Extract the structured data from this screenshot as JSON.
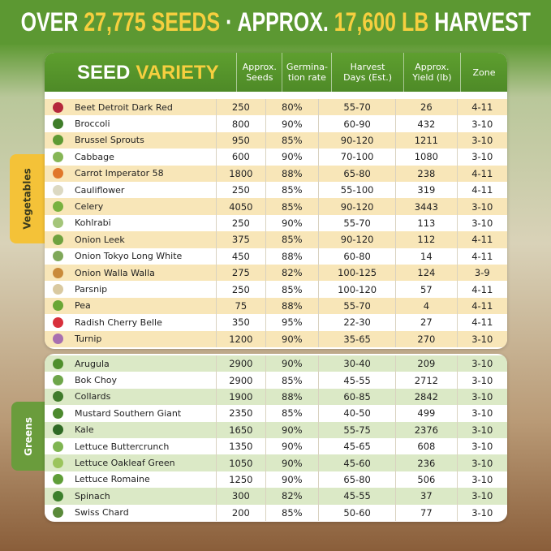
{
  "header": {
    "pre": "OVER",
    "seeds": "27,775 SEEDS",
    "mid": "· APPROX.",
    "harvest": "17,600 LB",
    "post": "HARVEST"
  },
  "table": {
    "columns": {
      "variety_a": "SEED",
      "variety_b": "VARIETY",
      "seeds": "Approx.\nSeeds",
      "germination": "Germina-\ntion rate",
      "days": "Harvest\nDays (Est.)",
      "yield": "Approx.\nYield (lb)",
      "zone": "Zone"
    },
    "groups": [
      {
        "label": "Vegetables",
        "rows": [
          [
            "Beet Detroit Dark Red",
            "250",
            "80%",
            "55-70",
            "26",
            "4-11"
          ],
          [
            "Broccoli",
            "800",
            "90%",
            "60-90",
            "432",
            "3-10"
          ],
          [
            "Brussel Sprouts",
            "950",
            "85%",
            "90-120",
            "1211",
            "3-10"
          ],
          [
            "Cabbage",
            "600",
            "90%",
            "70-100",
            "1080",
            "3-10"
          ],
          [
            "Carrot Imperator 58",
            "1800",
            "88%",
            "65-80",
            "238",
            "4-11"
          ],
          [
            "Cauliflower",
            "250",
            "85%",
            "55-100",
            "319",
            "4-11"
          ],
          [
            "Celery",
            "4050",
            "85%",
            "90-120",
            "3443",
            "3-10"
          ],
          [
            "Kohlrabi",
            "250",
            "90%",
            "55-70",
            "113",
            "3-10"
          ],
          [
            "Onion Leek",
            "375",
            "85%",
            "90-120",
            "112",
            "4-11"
          ],
          [
            "Onion Tokyo Long White",
            "450",
            "88%",
            "60-80",
            "14",
            "4-11"
          ],
          [
            "Onion Walla Walla",
            "275",
            "82%",
            "100-125",
            "124",
            "3-9"
          ],
          [
            "Parsnip",
            "250",
            "85%",
            "100-120",
            "57",
            "4-11"
          ],
          [
            "Pea",
            "75",
            "88%",
            "55-70",
            "4",
            "4-11"
          ],
          [
            "Radish Cherry Belle",
            "350",
            "95%",
            "22-30",
            "27",
            "4-11"
          ],
          [
            "Turnip",
            "1200",
            "90%",
            "35-65",
            "270",
            "3-10"
          ]
        ]
      },
      {
        "label": "Greens",
        "rows": [
          [
            "Arugula",
            "2900",
            "90%",
            "30-40",
            "209",
            "3-10"
          ],
          [
            "Bok Choy",
            "2900",
            "85%",
            "45-55",
            "2712",
            "3-10"
          ],
          [
            "Collards",
            "1900",
            "88%",
            "60-85",
            "2842",
            "3-10"
          ],
          [
            "Mustard Southern Giant",
            "2350",
            "85%",
            "40-50",
            "499",
            "3-10"
          ],
          [
            "Kale",
            "1650",
            "90%",
            "55-75",
            "2376",
            "3-10"
          ],
          [
            "Lettuce Buttercrunch",
            "1350",
            "90%",
            "45-65",
            "608",
            "3-10"
          ],
          [
            "Lettuce Oakleaf Green",
            "1050",
            "90%",
            "45-60",
            "236",
            "3-10"
          ],
          [
            "Lettuce Romaine",
            "1250",
            "90%",
            "65-80",
            "506",
            "3-10"
          ],
          [
            "Spinach",
            "300",
            "82%",
            "45-55",
            "37",
            "3-10"
          ],
          [
            "Swiss Chard",
            "200",
            "85%",
            "50-60",
            "77",
            "3-10"
          ]
        ]
      }
    ]
  }
}
